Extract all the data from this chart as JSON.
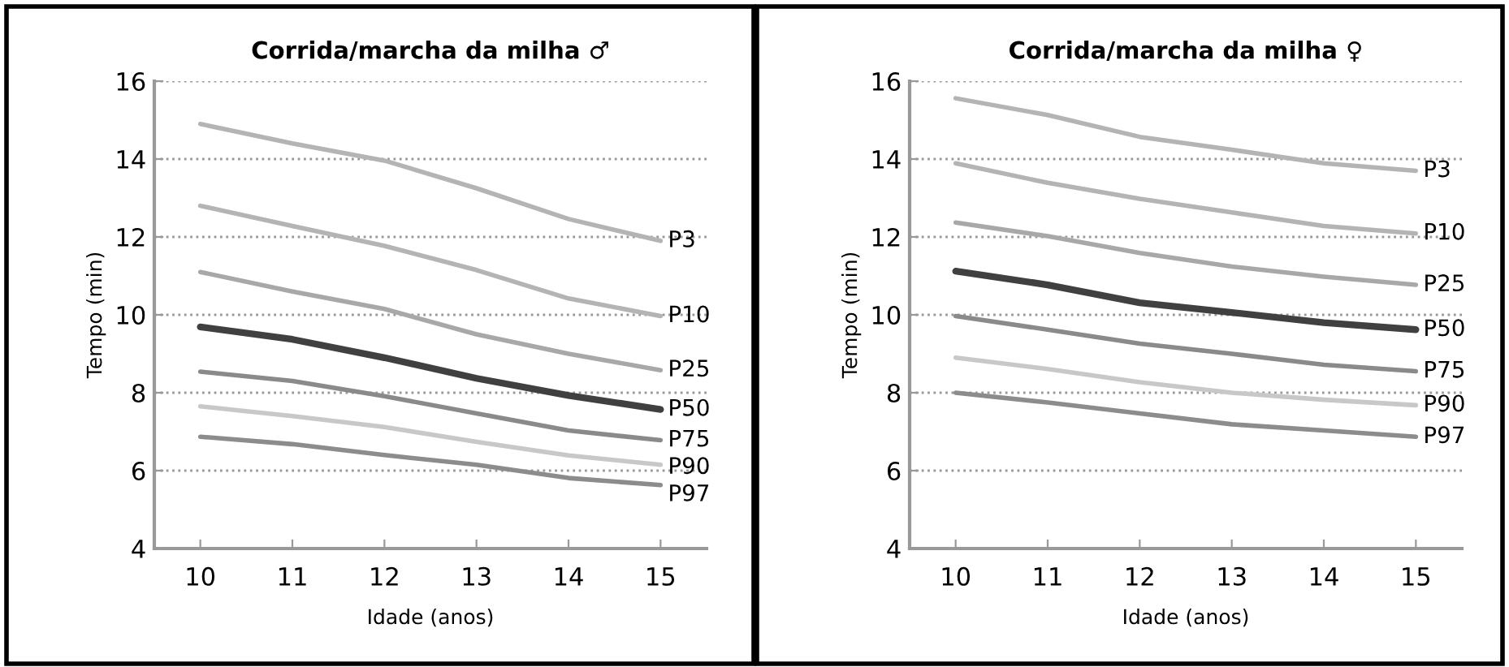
{
  "chart_data": [
    {
      "type": "line",
      "title": "Corrida/marcha da milha ♂",
      "xlabel": "Idade (anos)",
      "ylabel": "Tempo (min)",
      "x": [
        10,
        11,
        12,
        13,
        14,
        15
      ],
      "xlim": [
        9.5,
        15.5
      ],
      "xticks": [
        10,
        11,
        12,
        13,
        14,
        15
      ],
      "ylim": [
        4,
        16
      ],
      "yticks": [
        4,
        6,
        8,
        10,
        12,
        14,
        16
      ],
      "grid": "y",
      "legend": false,
      "marker": "none",
      "line_style": "solid",
      "series": [
        {
          "name": "P3",
          "color": "#b4b4b4",
          "values": [
            14.9,
            14.4,
            13.96,
            13.25,
            12.46,
            11.9
          ]
        },
        {
          "name": "P10",
          "color": "#b4b4b4",
          "values": [
            12.8,
            12.28,
            11.77,
            11.15,
            10.42,
            9.97
          ]
        },
        {
          "name": "P25",
          "color": "#a8a8a8",
          "values": [
            11.1,
            10.6,
            10.15,
            9.5,
            9.0,
            8.58
          ]
        },
        {
          "name": "P50",
          "color": "#404040",
          "values": [
            9.69,
            9.37,
            8.9,
            8.37,
            7.93,
            7.57
          ]
        },
        {
          "name": "P75",
          "color": "#8a8a8a",
          "values": [
            8.54,
            8.3,
            7.91,
            7.47,
            7.03,
            6.78
          ]
        },
        {
          "name": "P90",
          "color": "#c8c8c8",
          "values": [
            7.65,
            7.4,
            7.12,
            6.74,
            6.39,
            6.15
          ]
        },
        {
          "name": "P97",
          "color": "#8c8c8c",
          "values": [
            6.87,
            6.68,
            6.4,
            6.15,
            5.81,
            5.63
          ]
        }
      ]
    },
    {
      "type": "line",
      "title": "Corrida/marcha da milha ♀",
      "xlabel": "Idade (anos)",
      "ylabel": "Tempo (min)",
      "x": [
        10,
        11,
        12,
        13,
        14,
        15
      ],
      "xlim": [
        9.5,
        15.5
      ],
      "xticks": [
        10,
        11,
        12,
        13,
        14,
        15
      ],
      "ylim": [
        4,
        16
      ],
      "yticks": [
        4,
        6,
        8,
        10,
        12,
        14,
        16
      ],
      "grid": "y",
      "legend": false,
      "marker": "none",
      "line_style": "solid",
      "series": [
        {
          "name": "P3",
          "color": "#b4b4b4",
          "values": [
            15.56,
            15.13,
            14.57,
            14.24,
            13.89,
            13.7
          ]
        },
        {
          "name": "P10",
          "color": "#b4b4b4",
          "values": [
            13.89,
            13.39,
            12.98,
            12.63,
            12.28,
            12.09
          ]
        },
        {
          "name": "P25",
          "color": "#a8a8a8",
          "values": [
            12.37,
            12.02,
            11.59,
            11.24,
            10.98,
            10.77
          ]
        },
        {
          "name": "P50",
          "color": "#404040",
          "values": [
            11.12,
            10.77,
            10.31,
            10.06,
            9.8,
            9.62
          ]
        },
        {
          "name": "P75",
          "color": "#8a8a8a",
          "values": [
            9.97,
            9.62,
            9.26,
            9.0,
            8.72,
            8.55
          ]
        },
        {
          "name": "P90",
          "color": "#c8c8c8",
          "values": [
            8.9,
            8.61,
            8.27,
            8.0,
            7.82,
            7.68
          ]
        },
        {
          "name": "P97",
          "color": "#8c8c8c",
          "values": [
            8.0,
            7.75,
            7.47,
            7.19,
            7.03,
            6.87
          ]
        }
      ]
    }
  ]
}
